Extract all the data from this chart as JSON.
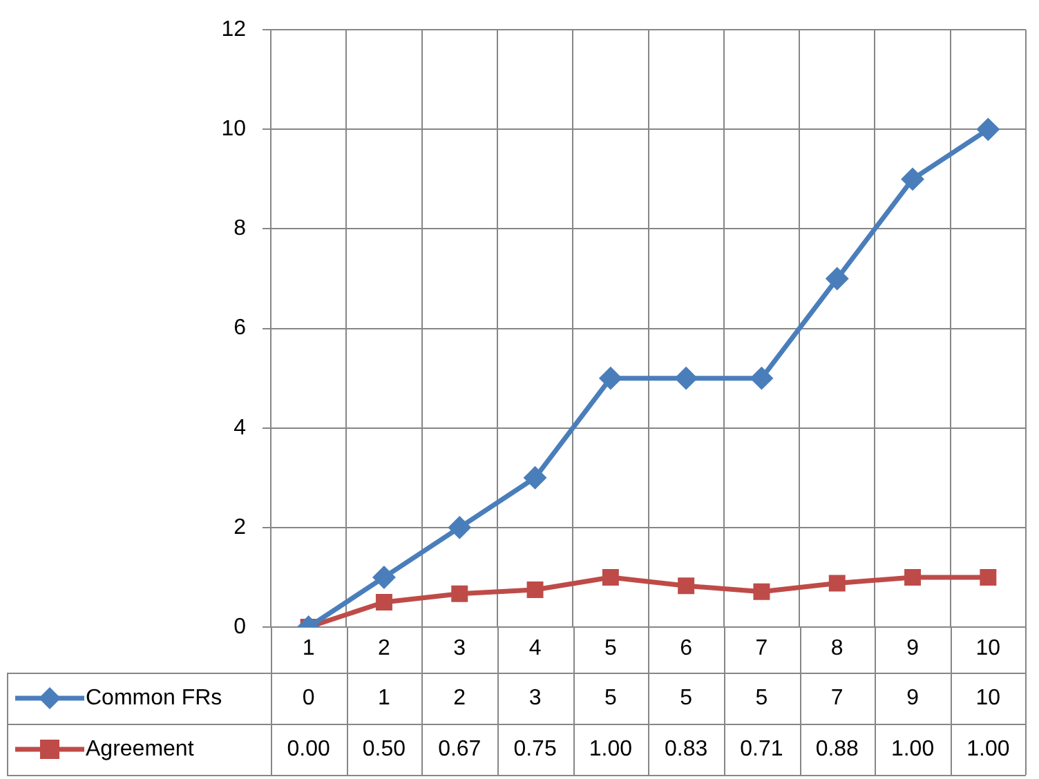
{
  "chart_data": {
    "type": "line",
    "categories": [
      "1",
      "2",
      "3",
      "4",
      "5",
      "6",
      "7",
      "8",
      "9",
      "10"
    ],
    "series": [
      {
        "name": "Common FRs",
        "color": "#4a7ebb",
        "marker": "diamond",
        "values": [
          0,
          1,
          2,
          3,
          5,
          5,
          5,
          7,
          9,
          10
        ],
        "value_labels": [
          "0",
          "1",
          "2",
          "3",
          "5",
          "5",
          "5",
          "7",
          "9",
          "10"
        ]
      },
      {
        "name": "Agreement",
        "color": "#be4b48",
        "marker": "square",
        "values": [
          0,
          0.5,
          0.67,
          0.75,
          1,
          0.83,
          0.71,
          0.88,
          1,
          1
        ],
        "value_labels": [
          "0.00",
          "0.50",
          "0.67",
          "0.75",
          "1.00",
          "0.83",
          "0.71",
          "0.88",
          "1.00",
          "1.00"
        ]
      }
    ],
    "ylim": [
      0,
      12
    ],
    "yticks": [
      0,
      2,
      4,
      6,
      8,
      10,
      12
    ],
    "grid": true,
    "legend": "bottom"
  }
}
